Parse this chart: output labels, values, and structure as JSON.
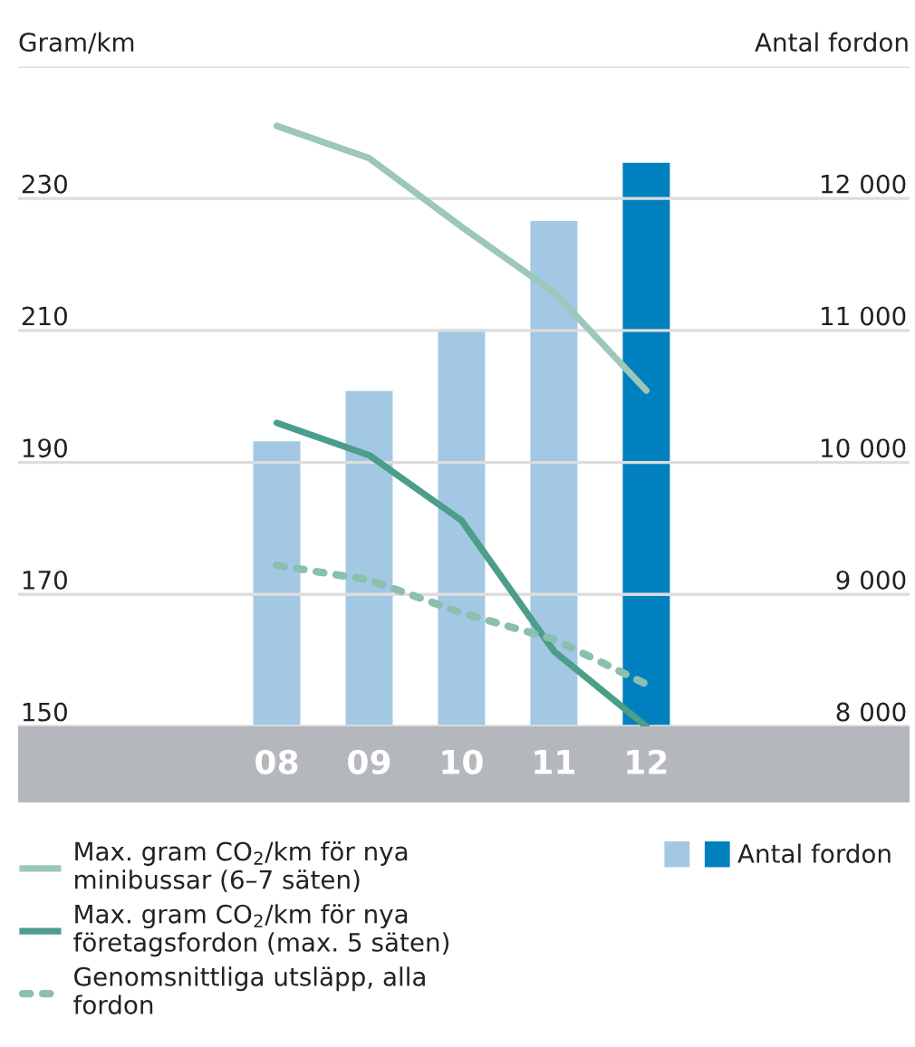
{
  "chart_data": {
    "type": "bar",
    "ylabel": "Gram/km",
    "y2label": "Antal fordon",
    "categories": [
      "08",
      "09",
      "10",
      "11",
      "12"
    ],
    "series": [
      {
        "name": "Antal fordon",
        "axis": "y2",
        "colors": [
          "#a3c8e4",
          "#a3c8e4",
          "#a3c8e4",
          "#a3c8e4",
          "#0080bf"
        ],
        "values": [
          10160,
          10540,
          11010,
          11830,
          12270
        ]
      },
      {
        "name": "Max. gram CO$_{2}$/km för nya minibussar (6–7 säten)",
        "type": "line",
        "color": "#9cc7b9",
        "line_style": "solid",
        "values": [
          241.0,
          236.1,
          225.7,
          215.8,
          200.9
        ]
      },
      {
        "name": "Max. gram CO$_{2}$/km för nya företagsfordon (max. 5 säten)",
        "type": "line",
        "color": "#4a9e8a",
        "line_style": "solid",
        "values": [
          196.0,
          191.1,
          181.2,
          161.4,
          150
        ]
      },
      {
        "name": "Genomsnittliga utsläpp, alla fordon",
        "type": "line",
        "color": "#8bbfae",
        "line_style": "dotted",
        "values": [
          174.4,
          172.2,
          167.2,
          163.2,
          156.4
        ]
      }
    ],
    "ylim": [
      150,
      250
    ],
    "yticks": [
      150,
      170,
      190,
      210,
      230,
      {
        "value": 250,
        "label": null
      }
    ],
    "y2lim": [
      8000,
      13000
    ],
    "y2ticks": [
      {
        "value": 8000,
        "label": "8 000"
      },
      {
        "value": 9000,
        "label": "9 000"
      },
      {
        "value": 10000,
        "label": "10 000"
      },
      {
        "value": 11000,
        "label": "11 000"
      },
      {
        "value": 12000,
        "label": "12 000"
      },
      {
        "value": 13000,
        "label": null
      }
    ],
    "grid": "y",
    "legend": "bottom"
  }
}
